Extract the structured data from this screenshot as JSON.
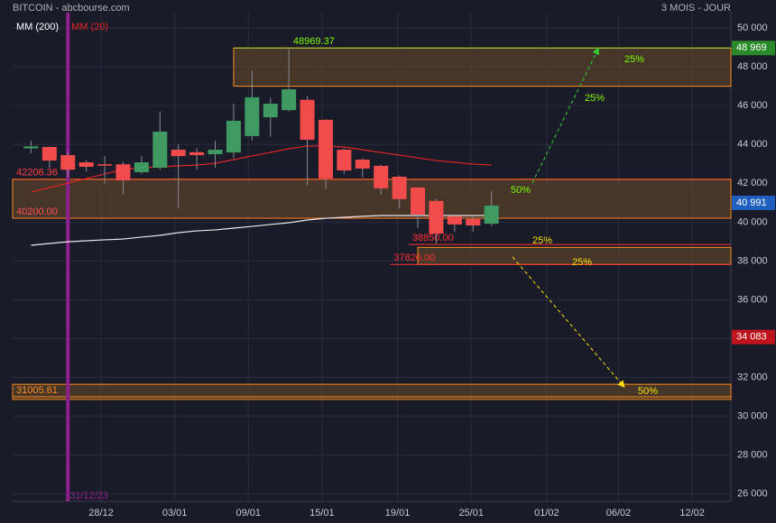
{
  "chart_data": {
    "type": "candlestick",
    "title": "BITCOIN - abcbourse.com",
    "subtitle": "3 MOIS - JOUR",
    "x": [
      0,
      1,
      2,
      3,
      4,
      5,
      6,
      7,
      8,
      9,
      10,
      11,
      12,
      13,
      14,
      15,
      16,
      17,
      18,
      19,
      20,
      21,
      22,
      23,
      24,
      25
    ],
    "open": [
      43800,
      43870,
      43450,
      43080,
      42980,
      42980,
      42570,
      42800,
      43730,
      43600,
      43500,
      43590,
      44430,
      45400,
      45770,
      46300,
      45270,
      43730,
      43220,
      42900,
      42340,
      41780,
      41090,
      40300,
      40160,
      39920
    ],
    "high": [
      44200,
      43900,
      43600,
      43200,
      43400,
      43100,
      43400,
      45700,
      44000,
      43800,
      44200,
      46100,
      47800,
      46400,
      48900,
      46500,
      45300,
      43800,
      43300,
      42950,
      42400,
      41800,
      41200,
      40400,
      40300,
      41600
    ],
    "low": [
      43550,
      42800,
      42300,
      42600,
      42000,
      41400,
      42500,
      42700,
      40700,
      42700,
      42800,
      43300,
      44200,
      44400,
      45700,
      41900,
      41700,
      42500,
      42300,
      41400,
      40700,
      39700,
      38900,
      39500,
      39500,
      39800
    ],
    "close": [
      43900,
      43170,
      42700,
      42850,
      42950,
      42150,
      43080,
      44660,
      43400,
      43450,
      43730,
      45220,
      46430,
      46100,
      46840,
      44240,
      42250,
      42660,
      42760,
      41740,
      41180,
      40390,
      39400,
      39880,
      39830,
      40850
    ],
    "up_color": "#3f9a62",
    "down_color": "#f24b4b",
    "series": [
      {
        "name": "MM (200)",
        "color": "#e8e8e8",
        "values": [
          38810,
          38900,
          38990,
          39040,
          39090,
          39130,
          39230,
          39320,
          39460,
          39550,
          39600,
          39690,
          39780,
          39880,
          39970,
          40110,
          40200,
          40250,
          40300,
          40340,
          40340,
          40340,
          40340,
          40340,
          40340,
          40340
        ]
      },
      {
        "name": "MM (20)",
        "color": "#e02424",
        "values": [
          41550,
          41780,
          42010,
          42250,
          42480,
          42710,
          42800,
          42850,
          42900,
          42940,
          43030,
          43220,
          43410,
          43590,
          43780,
          43920,
          43920,
          43870,
          43730,
          43590,
          43450,
          43310,
          43170,
          43080,
          42990,
          42940
        ]
      }
    ],
    "xlim": [
      -1,
      38
    ],
    "ylim": [
      25620,
      50790
    ],
    "xticks": [
      {
        "value": 3.8,
        "label": "28/12"
      },
      {
        "value": 7.8,
        "label": "03/01"
      },
      {
        "value": 11.8,
        "label": "09/01"
      },
      {
        "value": 15.8,
        "label": "15/01"
      },
      {
        "value": 19.9,
        "label": "19/01"
      },
      {
        "value": 23.9,
        "label": "25/01"
      },
      {
        "value": 28,
        "label": "01/02"
      },
      {
        "value": 31.9,
        "label": "06/02"
      },
      {
        "value": 35.9,
        "label": "12/02"
      }
    ],
    "yticks": [
      {
        "value": 26000,
        "label": "26 000"
      },
      {
        "value": 28000,
        "label": "28 000"
      },
      {
        "value": 30000,
        "label": "30 000"
      },
      {
        "value": 32000,
        "label": "32 000"
      },
      {
        "value": 34000,
        "label": "34 000"
      },
      {
        "value": 36000,
        "label": "36 000"
      },
      {
        "value": 38000,
        "label": "38 000"
      },
      {
        "value": 40000,
        "label": "40 000"
      },
      {
        "value": 42000,
        "label": "42 000"
      },
      {
        "value": 44000,
        "label": "44 000"
      },
      {
        "value": 46000,
        "label": "46 000"
      },
      {
        "value": 48000,
        "label": "48 000"
      },
      {
        "value": 50000,
        "label": "50 000"
      }
    ],
    "grid": true,
    "zones": [
      {
        "top": 48969.37,
        "bottom": 47000,
        "start": 11
      },
      {
        "top": 42206.36,
        "bottom": 40200,
        "start": -1
      },
      {
        "top": 38700,
        "bottom": 37820,
        "start": 21
      },
      {
        "top": 31650,
        "bottom": 30870,
        "start": -1
      }
    ],
    "levels": [
      {
        "value": 48969.37,
        "start": 11,
        "color": "#9acd32",
        "text_color": "#7cfc00"
      },
      {
        "value": 42206.36,
        "start": -1,
        "color": "#ff5a2a",
        "text_color": "#ff4040"
      },
      {
        "value": 40200,
        "label": "40200.00",
        "start": -1,
        "color": "#ff7a2a",
        "text_color": "#ff5050"
      },
      {
        "value": 38850,
        "label": "38850.00",
        "start": 20.5,
        "color": "#ff3030",
        "text_color": "#ff3030"
      },
      {
        "value": 37820,
        "label": "37820.00",
        "start": 19.5,
        "color": "#ff3030",
        "text_color": "#ff3030"
      },
      {
        "value": 31005.61,
        "start": -1,
        "color": "#ff8c1a",
        "text_color": "#ff8c1a"
      }
    ],
    "price_tags": [
      {
        "value": 48969,
        "label": "48 969",
        "color": "#2a8a2a"
      },
      {
        "value": 40991,
        "label": "40 991",
        "color": "#1f5fbf"
      },
      {
        "value": 34083,
        "label": "34 083",
        "color": "#c0141c"
      }
    ],
    "vline": {
      "x": 2,
      "label": "31/12/23",
      "color": "#8e1f8e"
    },
    "annotations": [
      "25%",
      "25%",
      "50%",
      "25%",
      "25%",
      "50%"
    ]
  }
}
